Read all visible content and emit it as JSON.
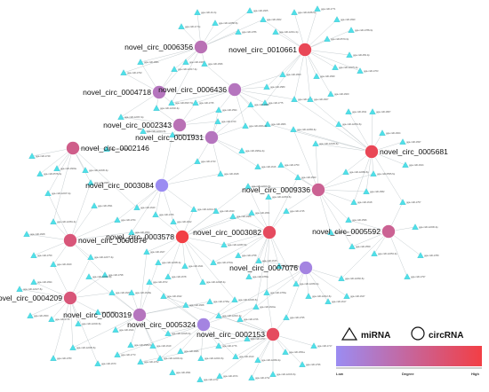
{
  "legend": {
    "mirna_label": "miRNA",
    "circrna_label": "circRNA",
    "scale_low": "Low",
    "scale_mid": "Degree",
    "scale_high": "High",
    "color_low": "#9b8cf2",
    "color_high": "#f23f45"
  },
  "colors": {
    "mirna_fill": "#4fe0e8",
    "edge": "#b8c0c4"
  },
  "circrnas": [
    {
      "id": "c6356",
      "label": "novel_circ_0006356",
      "level": 0.35
    },
    {
      "id": "c10661",
      "label": "novel_circ_0010661",
      "level": 0.9
    },
    {
      "id": "c4718",
      "label": "novel_circ_0004718",
      "level": 0.3
    },
    {
      "id": "c6436",
      "label": "novel_circ_0006436",
      "level": 0.3
    },
    {
      "id": "c2343",
      "label": "novel_circ_0002343",
      "level": 0.35
    },
    {
      "id": "c1931",
      "label": "novel_circ_0001931",
      "level": 0.3
    },
    {
      "id": "c5681",
      "label": "novel_circ_0005681",
      "level": 0.9
    },
    {
      "id": "c2146",
      "label": "novel_circ_0002146",
      "level": 0.6
    },
    {
      "id": "c3084",
      "label": "novel_circ_0003084",
      "level": 0.0
    },
    {
      "id": "c9336",
      "label": "novel_circ_0009336",
      "level": 0.55
    },
    {
      "id": "c876",
      "label": "novel_circ_0000876",
      "level": 0.7
    },
    {
      "id": "c3578",
      "label": "novel_circ_0003578",
      "level": 1.0
    },
    {
      "id": "c3082",
      "label": "novel_circ_0003082",
      "level": 0.85
    },
    {
      "id": "c5592",
      "label": "novel_circ_0005592",
      "level": 0.55
    },
    {
      "id": "c7076",
      "label": "novel_circ_0007076",
      "level": 0.1
    },
    {
      "id": "c4209",
      "label": "novel_circ_0004209",
      "level": 0.7
    },
    {
      "id": "c319",
      "label": "novel_circ_0000319",
      "level": 0.3
    },
    {
      "id": "c5324",
      "label": "novel_circ_0005324",
      "level": 0.1
    },
    {
      "id": "c2153",
      "label": "novel_circ_0002153",
      "level": 0.85
    }
  ],
  "mirnas": [
    "gga-miR-1b-3p",
    "gga-miR-1605",
    "gga-miR-12258-5p",
    "gga-miR-17-5p",
    "gga-miR-1786",
    "gga-miR-1662",
    "gga-miR-12211-3p",
    "gga-miR-2188-5p",
    "gga-miR-1771",
    "gga-miR-1690",
    "gga-miR-1788-3p",
    "gga-miR-6570-3p",
    "gga-miR-456-3p",
    "gga-miR-12275-3p",
    "gga-miR-1763",
    "gga-miR-1699",
    "gga-miR-1650",
    "gga-miR-1580",
    "gga-miR-1775",
    "gga-miR-1682",
    "gga-miR-1607",
    "gga-miR-1600",
    "gga-miR-1793",
    "gga-miR-1584",
    "gga-miR-12217-3p",
    "gga-miR-1329",
    "gga-miR-1696",
    "gga-miR-6607-5p",
    "gga-miR-1735",
    "gga-miR-1594",
    "gga-miR-1658",
    "gga-miR-1806",
    "gga-miR-200b-3p",
    "gga-miR-12267-3p",
    "gga-miR-12240-3p",
    "gga-miR-12219-5p",
    "gga-miR-12294-3p",
    "gga-miR-1720",
    "gga-miR-1684a-3p",
    "gga-miR-1743",
    "gga-miR-1628",
    "gga-miR-1616",
    "gga-miR-12283-3p",
    "gga-miR-12235-5p",
    "gga-miR-12254-5p",
    "gga-miR-1811",
    "gga-miR-1807",
    "gga-miR-1604",
    "gga-miR-1697",
    "gga-miR-1624",
    "gga-miR-6555-5p",
    "gga-miR-12289-5p",
    "gga-miR-1582",
    "gga-miR-1618",
    "gga-miR-1596",
    "gga-miR-1757",
    "gga-miR-12206-3p",
    "gga-miR-1789",
    "gga-miR-1797",
    "gga-miR-12253-3p",
    "gga-miR-1559",
    "gga-miR-1566",
    "gga-miR-12260-5p",
    "gga-miR-1647",
    "gga-miR-1617",
    "gga-miR-12212-5p",
    "gga-miR-12269-3p",
    "gga-miR-1757a",
    "gga-miR-1615",
    "gga-miR-1789a",
    "gga-miR-1758",
    "gga-miR-12287-5p",
    "gga-miR-1763a",
    "gga-miR-12228-3p",
    "gga-miR-1641",
    "gga-miR-1678",
    "gga-miR-12295-3p",
    "gga-miR-1627",
    "gga-miR-1654",
    "gga-miR-1764",
    "gga-miR-1591",
    "gga-miR-12207-3p",
    "gga-miR-6578-3p",
    "gga-miR-1749",
    "gga-miR-1600a",
    "gga-miR-12236-3p",
    "gga-miR-1689",
    "gga-miR-12213-5p",
    "gga-miR-1640",
    "gga-miR-1766",
    "gga-miR-1622",
    "gga-miR-12241-5p",
    "gga-miR-1630",
    "gga-miR-1688",
    "gga-miR-1651",
    "gga-miR-12263-5p",
    "gga-miR-1745",
    "gga-miR-1593",
    "gga-miR-1750",
    "gga-miR-12231-5p",
    "gga-miR-12281-3p",
    "gga-miR-1608",
    "gga-miR-1759",
    "gga-miR-1629",
    "gga-miR-12277-3p",
    "gga-miR-1798",
    "gga-miR-1620",
    "gga-miR-1634",
    "gga-miR-12246-5p",
    "gga-miR-1715",
    "gga-miR-1560",
    "gga-miR-1694",
    "gga-miR-12227-5p",
    "gga-miR-1644",
    "gga-miR-6588-5p",
    "gga-miR-1619",
    "gga-miR-12203-3p",
    "gga-miR-1686",
    "gga-miR-12216-5p",
    "gga-miR-1776",
    "gga-miR-1610",
    "gga-miR-1707",
    "gga-miR-12284-3p",
    "gga-miR-1651a",
    "gga-miR-1796",
    "gga-miR-1717",
    "gga-miR-12233-5p",
    "gga-miR-1732",
    "gga-miR-1674",
    "gga-miR-1702",
    "gga-miR-1773",
    "gga-miR-12229-3p",
    "gga-miR-1668",
    "gga-miR-1735a",
    "gga-miR-12236-5p",
    "gga-miR-1624a",
    "gga-miR-1766a",
    "gga-miR-1795",
    "gga-miR-1726",
    "gga-miR-12210-3p",
    "gga-miR-1642",
    "gga-miR-1572",
    "gga-miR-1618a",
    "gga-miR-12262-3p",
    "gga-miR-12205-5p",
    "gga-miR-1780",
    "gga-miR-1670",
    "gga-miR-1691",
    "gga-miR-1722",
    "gga-miR-12265-5p",
    "gga-miR-1663"
  ]
}
